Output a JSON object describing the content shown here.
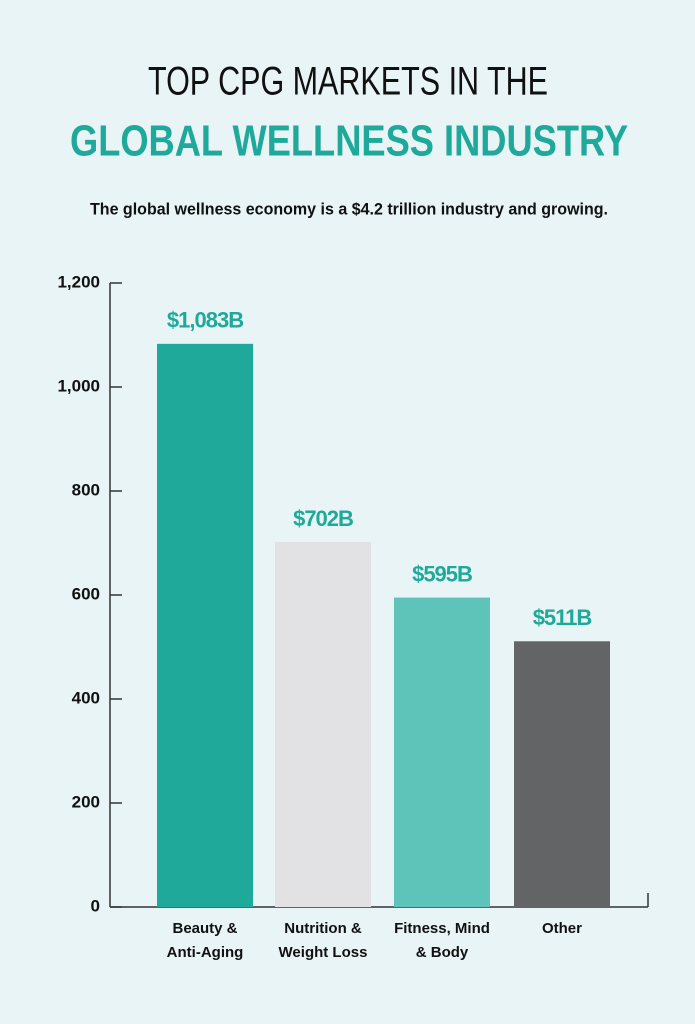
{
  "chart_data": {
    "type": "bar",
    "title": [
      "TOP CPG MARKETS IN THE",
      "GLOBAL WELLNESS INDUSTRY"
    ],
    "subtitle": "The global wellness economy is a $4.2 trillion industry and growing.",
    "categories": [
      [
        "Beauty &",
        "Anti-Aging"
      ],
      [
        "Nutrition &",
        "Weight Loss"
      ],
      [
        "Fitness, Mind",
        "& Body"
      ],
      [
        "Other"
      ]
    ],
    "values": [
      1083,
      702,
      595,
      511
    ],
    "value_labels": [
      "$1,083B",
      "$702B",
      "$595B",
      "$511B"
    ],
    "colors": [
      "#1ea99a",
      "#e2e2e4",
      "#5ec4b9",
      "#636466"
    ],
    "label_color": "#1ea99a",
    "ylim": [
      0,
      1200
    ],
    "yticks": [
      0,
      200,
      400,
      600,
      800,
      {
        "value": 1000,
        "label": "1,000"
      },
      {
        "value": 1200,
        "label": "1,200"
      }
    ]
  }
}
